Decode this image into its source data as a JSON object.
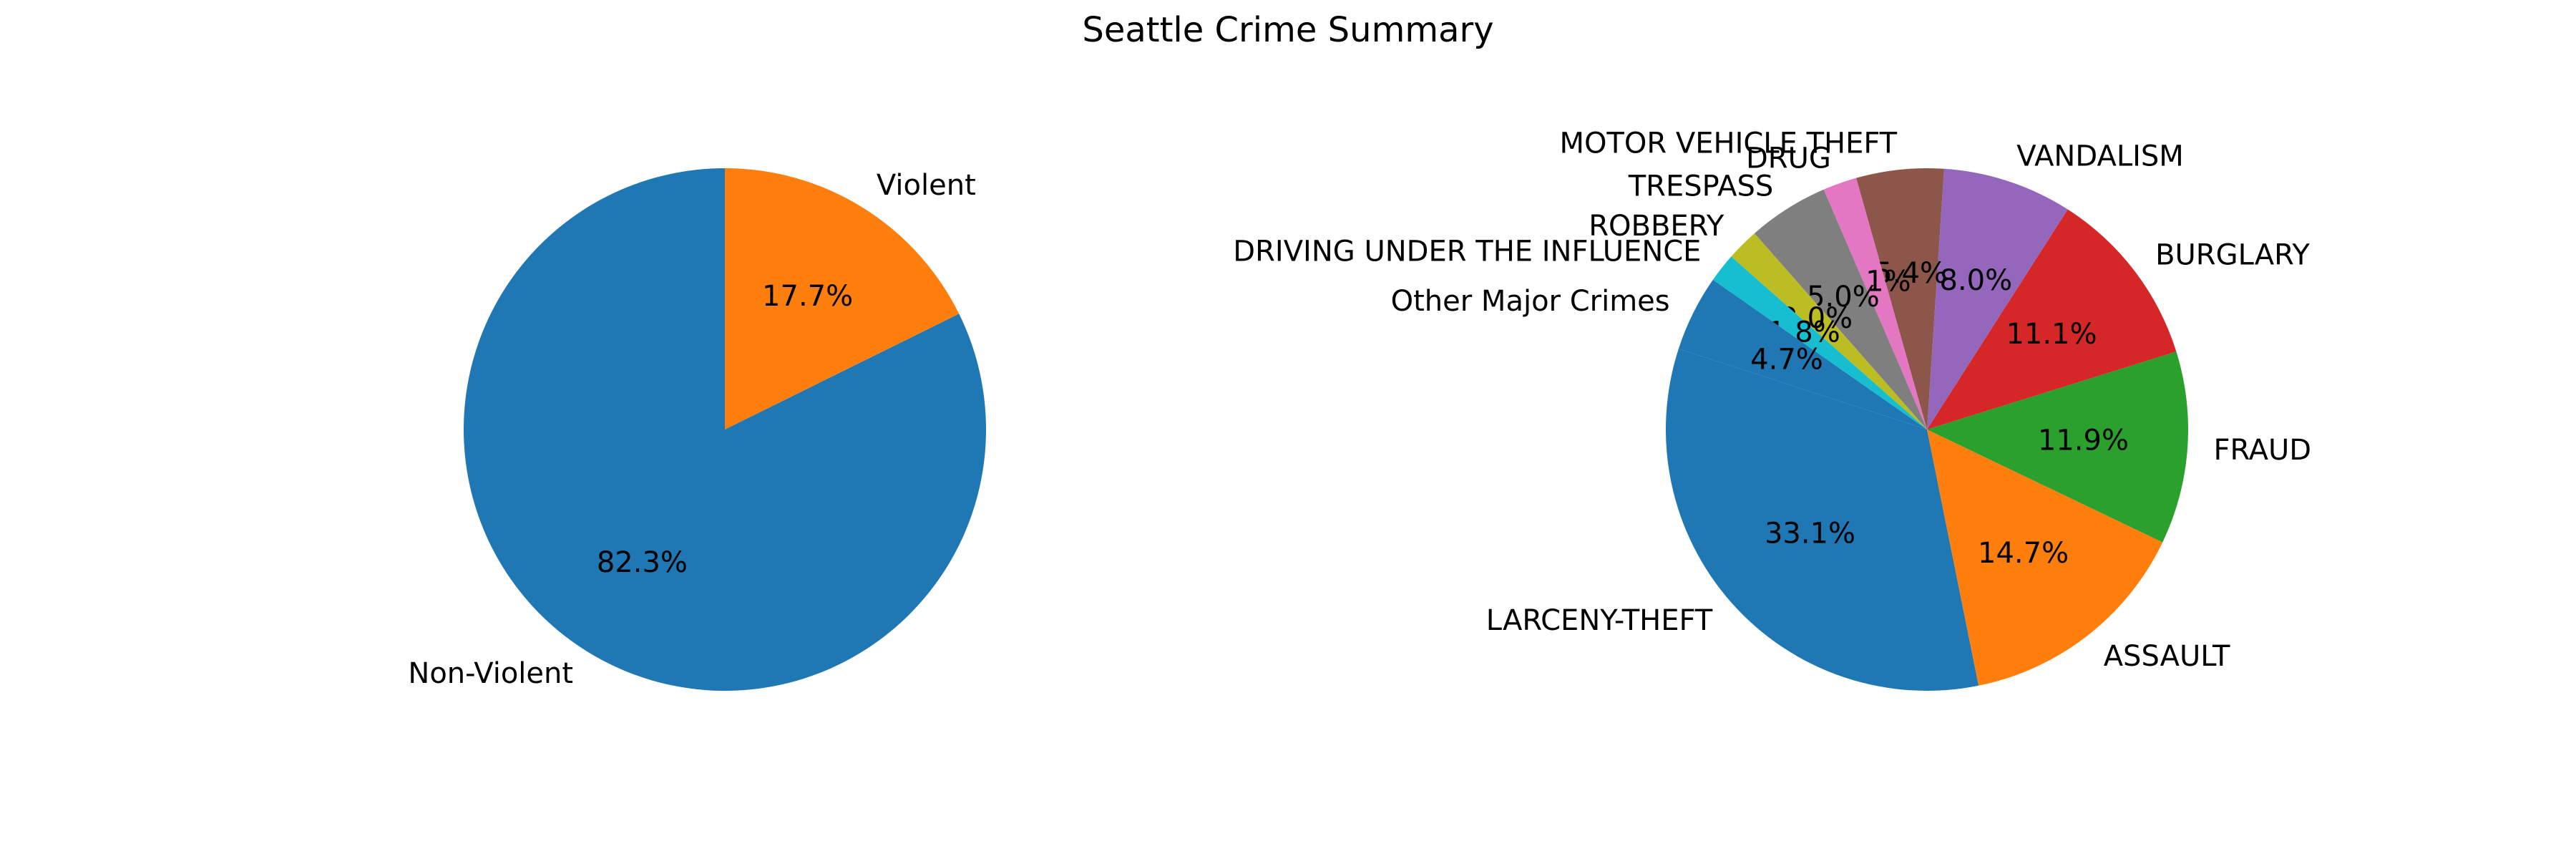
{
  "figure": {
    "title": "Seattle Crime Summary"
  },
  "chart_data": [
    {
      "type": "pie",
      "categories": [
        "Violent",
        "Non-Violent"
      ],
      "values": [
        17.7,
        82.3
      ],
      "value_labels": [
        "17.7%",
        "82.3%"
      ],
      "start_angle_deg": 90,
      "direction": "clockwise",
      "colors": [
        "#ff7f0e",
        "#1f77b4"
      ]
    },
    {
      "type": "pie",
      "categories": [
        "LARCENY-THEFT",
        "ASSAULT",
        "FRAUD",
        "BURGLARY",
        "VANDALISM",
        "MOTOR VEHICLE THEFT",
        "DRUG",
        "TRESPASS",
        "ROBBERY",
        "DRIVING UNDER THE INFLUENCE",
        "Other Major Crimes"
      ],
      "values": [
        33.1,
        14.7,
        11.9,
        11.1,
        8.0,
        5.4,
        2.1,
        5.0,
        2.0,
        1.8,
        4.7
      ],
      "value_labels": [
        "33.1%",
        "14.7%",
        "11.9%",
        "11.1%",
        "8.0%",
        "5.4%",
        "2.1%",
        "5.0%",
        "2.0%",
        "1.8%",
        "4.7%"
      ],
      "start_angle_deg": 162,
      "direction": "counterclockwise",
      "colors": [
        "#1f77b4",
        "#ff7f0e",
        "#2ca02c",
        "#d62728",
        "#9467bd",
        "#8c564b",
        "#e377c2",
        "#7f7f7f",
        "#bcbd22",
        "#17becf",
        "#1f77b4"
      ]
    }
  ]
}
